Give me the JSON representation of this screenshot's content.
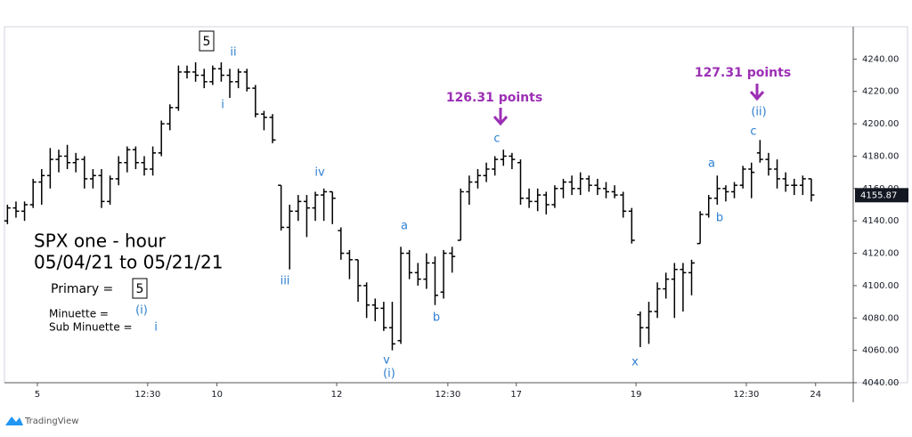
{
  "chart_data": {
    "type": "ohlc",
    "color": "#000000",
    "x": [
      -4,
      -3,
      -2,
      -1,
      0,
      1,
      2,
      3,
      4,
      5,
      6,
      7,
      8,
      9,
      10,
      11,
      12,
      13,
      14,
      15,
      16,
      17,
      18,
      19,
      20,
      21,
      22,
      23,
      24,
      25,
      26,
      27,
      28,
      29,
      30,
      31,
      32,
      33,
      34,
      35,
      36,
      37,
      38,
      39,
      40,
      41,
      42,
      43,
      44,
      45,
      46,
      47,
      48,
      49,
      50,
      51,
      52,
      53,
      54,
      55,
      56,
      57,
      58,
      59,
      60,
      61,
      62,
      63,
      64,
      65,
      66,
      67,
      68,
      69,
      70,
      71,
      72,
      73,
      74,
      75,
      76,
      77,
      78,
      79,
      80,
      81,
      82,
      83,
      84,
      85,
      86,
      87,
      88,
      89,
      90
    ],
    "open": [
      4140,
      4148,
      4146,
      4150,
      4164,
      4168,
      4178,
      4180,
      4176,
      4178,
      4166,
      4168,
      4152,
      4166,
      4176,
      4184,
      4176,
      4172,
      4182,
      4200,
      4210,
      4232,
      4232,
      4230,
      4226,
      4234,
      4230,
      4226,
      4232,
      4222,
      4206,
      4204,
      4162,
      4136,
      4146,
      4152,
      4148,
      4156,
      4158,
      4134,
      4120,
      4116,
      4100,
      4088,
      4086,
      4074,
      4066,
      4120,
      4108,
      4104,
      4114,
      4096,
      4120,
      4128,
      4158,
      4164,
      4168,
      4172,
      4178,
      4180,
      4176,
      4154,
      4152,
      4156,
      4150,
      4160,
      4164,
      4160,
      4166,
      4162,
      4160,
      4158,
      4156,
      4146,
      4082,
      4074,
      4084,
      4098,
      4104,
      4110,
      4108,
      4126,
      4144,
      4154,
      4160,
      4158,
      4162,
      4172,
      4182,
      4178,
      4172,
      4166,
      4162,
      4162,
      4166
    ],
    "high": [
      4150,
      4152,
      4152,
      4166,
      4172,
      4185,
      4184,
      4187,
      4182,
      4180,
      4172,
      4172,
      4168,
      4180,
      4186,
      4186,
      4180,
      4186,
      4202,
      4212,
      4236,
      4236,
      4238,
      4234,
      4236,
      4238,
      4234,
      4234,
      4234,
      4224,
      4208,
      4206,
      4162,
      4150,
      4156,
      4156,
      4158,
      4160,
      4158,
      4136,
      4122,
      4116,
      4102,
      4092,
      4090,
      4090,
      4124,
      4122,
      4114,
      4120,
      4118,
      4122,
      4124,
      4160,
      4168,
      4172,
      4176,
      4180,
      4184,
      4182,
      4178,
      4160,
      4160,
      4158,
      4162,
      4166,
      4168,
      4170,
      4168,
      4166,
      4164,
      4162,
      4158,
      4148,
      4084,
      4090,
      4102,
      4108,
      4114,
      4114,
      4116,
      4146,
      4156,
      4168,
      4162,
      4164,
      4174,
      4176,
      4190,
      4182,
      4178,
      4170,
      4166,
      4168,
      4166
    ],
    "low": [
      4138,
      4142,
      4140,
      4148,
      4150,
      4160,
      4170,
      4172,
      4170,
      4160,
      4160,
      4148,
      4150,
      4162,
      4170,
      4172,
      4168,
      4168,
      4180,
      4196,
      4208,
      4228,
      4226,
      4222,
      4224,
      4226,
      4216,
      4222,
      4220,
      4204,
      4196,
      4188,
      4134,
      4110,
      4140,
      4130,
      4140,
      4140,
      4138,
      4116,
      4104,
      4090,
      4080,
      4078,
      4072,
      4060,
      4064,
      4104,
      4100,
      4098,
      4088,
      4092,
      4108,
      4128,
      4150,
      4160,
      4164,
      4168,
      4174,
      4172,
      4150,
      4148,
      4146,
      4144,
      4148,
      4154,
      4156,
      4156,
      4158,
      4156,
      4154,
      4154,
      4142,
      4126,
      4062,
      4064,
      4080,
      4092,
      4080,
      4084,
      4094,
      4126,
      4142,
      4150,
      4152,
      4154,
      4160,
      4154,
      4176,
      4168,
      4160,
      4158,
      4156,
      4156,
      4152
    ],
    "close": [
      4148,
      4146,
      4150,
      4164,
      4168,
      4178,
      4180,
      4176,
      4178,
      4166,
      4168,
      4152,
      4166,
      4176,
      4184,
      4176,
      4172,
      4182,
      4200,
      4210,
      4232,
      4232,
      4230,
      4226,
      4234,
      4230,
      4226,
      4232,
      4222,
      4206,
      4204,
      4190,
      4136,
      4146,
      4152,
      4148,
      4156,
      4158,
      4154,
      4120,
      4116,
      4100,
      4088,
      4086,
      4074,
      4064,
      4120,
      4108,
      4104,
      4114,
      4094,
      4120,
      4118,
      4158,
      4164,
      4168,
      4172,
      4178,
      4180,
      4178,
      4154,
      4152,
      4156,
      4150,
      4160,
      4164,
      4160,
      4166,
      4162,
      4160,
      4158,
      4156,
      4146,
      4128,
      4074,
      4084,
      4098,
      4104,
      4110,
      4108,
      4114,
      4144,
      4154,
      4160,
      4158,
      4162,
      4172,
      4170,
      4178,
      4172,
      4166,
      4162,
      4162,
      4166,
      4156
    ],
    "last_price": 4155.87,
    "xlim": [
      -4.35,
      94.9
    ],
    "xticks": [
      {
        "value": -0.5,
        "label": "5"
      },
      {
        "value": 12.4,
        "label": "12:30"
      },
      {
        "value": 20.5,
        "label": "10"
      },
      {
        "value": 34.5,
        "label": "12"
      },
      {
        "value": 47.5,
        "label": "12:30"
      },
      {
        "value": 55.5,
        "label": "17"
      },
      {
        "value": 69.5,
        "label": "19"
      },
      {
        "value": 82.4,
        "label": "12:30"
      },
      {
        "value": 90.5,
        "label": "24"
      }
    ],
    "ylim": [
      4040,
      4260
    ],
    "yticks": [
      {
        "value": 4040,
        "label": "4040.00"
      },
      {
        "value": 4060,
        "label": "4060.00"
      },
      {
        "value": 4080,
        "label": "4080.00"
      },
      {
        "value": 4100,
        "label": "4100.00"
      },
      {
        "value": 4120,
        "label": "4120.00"
      },
      {
        "value": 4140,
        "label": "4140.00"
      },
      {
        "value": 4160,
        "label": "4160.00"
      },
      {
        "value": 4180,
        "label": "4180.00"
      },
      {
        "value": 4200,
        "label": "4200.00"
      },
      {
        "value": 4220,
        "label": "4220.00"
      },
      {
        "value": 4240,
        "label": "4240.00"
      }
    ],
    "grid": false,
    "annotations": [
      "5",
      "ii",
      "i",
      "iv",
      "iii",
      "a",
      "v",
      "(i)",
      "b",
      "126.31 points",
      "c",
      "x",
      "a",
      "b",
      "127.31 points",
      "(ii)",
      "c"
    ],
    "legend_block": {
      "title": "SPX one - hour",
      "date_range": "05/04/21 to 05/21/21",
      "primary_label": "Primary =",
      "primary_value": "5",
      "minuette_label": "Minuette =",
      "minuette_value": "(i)",
      "sub_minuette_label": "Sub Minuette =",
      "sub_minuette_value": "i"
    }
  },
  "footer": "TradingView"
}
